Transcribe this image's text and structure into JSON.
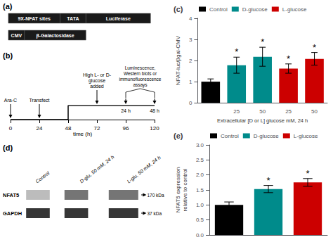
{
  "chart_data": [
    {
      "type": "diagram",
      "title": "(a)",
      "annotations": [
        [
          "9X-NFAT sites",
          "TATA",
          "Luciferase"
        ],
        [
          "CMV",
          "β-Galactosidase"
        ]
      ]
    },
    {
      "type": "timeline",
      "title": "(b)",
      "xlabel": "time (h)",
      "xlim": [
        0,
        120
      ],
      "xticks": [
        0,
        24,
        48,
        72,
        96,
        120
      ],
      "x": [
        0,
        48,
        48,
        120
      ],
      "values": [
        0,
        0,
        1,
        1
      ],
      "annotations": [
        {
          "x": 0,
          "text": "Ara-C"
        },
        {
          "x": 24,
          "text": "Transfect"
        },
        {
          "x": 72,
          "text": "High L- or D-\nglucose\nadded"
        }
      ],
      "intervals": [
        {
          "x": 96,
          "text": "24 h"
        },
        {
          "x": 120,
          "text": "48 h"
        }
      ],
      "brace": {
        "from": 96,
        "to": 120,
        "text": "Luminescence,\nWestern blots or\nimmunofluorescence\nassays"
      }
    },
    {
      "type": "bar",
      "title": "(c)",
      "xlabel": "Extracellular [D or L] glucose mM, 24 h",
      "ylabel": "NFAT-luc/βgal-CMV",
      "categories": [
        null,
        "25",
        "50",
        "25",
        "50"
      ],
      "series": [
        {
          "name": "Control",
          "color": "#000000",
          "values": [
            1.0,
            null,
            null,
            null,
            null
          ],
          "errors": [
            0.13,
            null,
            null,
            null,
            null
          ]
        },
        {
          "name": "D-glucose",
          "color": "#008B8B",
          "values": [
            null,
            1.78,
            2.18,
            null,
            null
          ],
          "errors": [
            null,
            0.38,
            0.45,
            null,
            null
          ],
          "significance": [
            null,
            "*",
            "*",
            null,
            null
          ]
        },
        {
          "name": "L-glucose",
          "color": "#cc0000",
          "values": [
            null,
            null,
            null,
            1.62,
            2.08
          ],
          "errors": [
            null,
            null,
            null,
            0.22,
            0.3
          ],
          "significance": [
            null,
            null,
            null,
            "*",
            "*"
          ]
        }
      ],
      "ylim": [
        0,
        4
      ],
      "yticks": [
        0,
        1,
        2,
        3,
        4
      ],
      "grid": false,
      "legend": "upper left"
    },
    {
      "type": "blot",
      "title": "(d)",
      "categories": [
        "Control",
        "D-glu, 50 mM, 24 h",
        "L-glu, 50 mM, 24 h"
      ],
      "series": [
        {
          "name": "NFAT5",
          "annotation": "170 kDa"
        },
        {
          "name": "GAPDH",
          "annotation": "37 kDa"
        }
      ]
    },
    {
      "type": "bar",
      "title": "(e)",
      "ylabel": "NFAT5 expression\nrelative to control",
      "categories": [
        null,
        null,
        null
      ],
      "series": [
        {
          "name": "Control",
          "color": "#000000",
          "values": [
            1.0,
            null,
            null
          ],
          "errors": [
            0.1,
            null,
            null
          ]
        },
        {
          "name": "D-glucose",
          "color": "#008B8B",
          "values": [
            null,
            1.53,
            null
          ],
          "errors": [
            null,
            0.12,
            null
          ],
          "significance": [
            null,
            "*",
            null
          ]
        },
        {
          "name": "L-glucose",
          "color": "#cc0000",
          "values": [
            null,
            null,
            1.75
          ],
          "errors": [
            null,
            null,
            0.13
          ],
          "significance": [
            null,
            null,
            "*"
          ]
        }
      ],
      "ylim": [
        0,
        3.0
      ],
      "yticks": [
        {
          "value": 0,
          "label": "0.0"
        },
        0.5,
        {
          "value": 1,
          "label": "1.0"
        },
        1.5,
        {
          "value": 2,
          "label": "2.0"
        },
        2.5,
        {
          "value": 3,
          "label": "3.0"
        }
      ],
      "grid": false,
      "legend": "upper left"
    }
  ]
}
